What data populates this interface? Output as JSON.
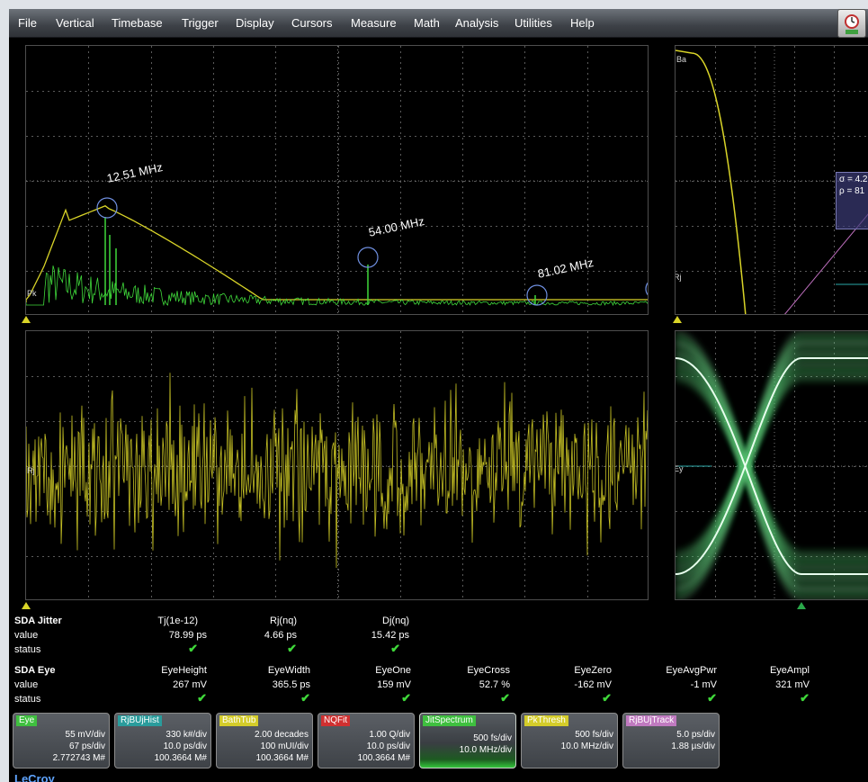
{
  "menu": {
    "items": [
      "File",
      "Vertical",
      "Timebase",
      "Trigger",
      "Display",
      "Cursors",
      "Measure",
      "Math",
      "Analysis",
      "Utilities",
      "Help"
    ]
  },
  "colors": {
    "spectrum_trace": "#3fd83a",
    "yellow_trace": "#d9d428",
    "eye": "#2aa84a",
    "check": "#3fd83a",
    "link_blue": "#5fa4ff"
  },
  "grid_labels": {
    "spectrum": "Pk",
    "bathtub": "Ba",
    "bathtub_lower": "Rj",
    "track": "Rj",
    "eye": "Ey"
  },
  "bathtub_fit": {
    "sigma": "σ = 4.2",
    "rho": "ρ = 81"
  },
  "peaks": [
    {
      "label": "12.51 MHz"
    },
    {
      "label": "54.00 MHz"
    },
    {
      "label": "81.02 MHz"
    }
  ],
  "sda_jitter": {
    "title": "SDA Jitter",
    "row_value": "value",
    "row_status": "status",
    "headers": [
      "Tj(1e-12)",
      "Rj(nq)",
      "Dj(nq)"
    ],
    "values": [
      "78.99 ps",
      "4.66 ps",
      "15.42 ps"
    ],
    "status": [
      "✔",
      "✔",
      "✔"
    ]
  },
  "sda_eye": {
    "title": "SDA Eye",
    "row_value": "value",
    "row_status": "status",
    "headers": [
      "EyeHeight",
      "EyeWidth",
      "EyeOne",
      "EyeCross",
      "EyeZero",
      "EyeAvgPwr",
      "EyeAmpl"
    ],
    "values": [
      "267 mV",
      "365.5 ps",
      "159 mV",
      "52.7 %",
      "-162 mV",
      "-1 mV",
      "321 mV"
    ],
    "status": [
      "✔",
      "✔",
      "✔",
      "✔",
      "✔",
      "✔",
      "✔"
    ]
  },
  "descriptors": [
    {
      "tag": "Eye",
      "tag_bg": "#3fbf3f",
      "tag_fg": "#ffffff",
      "lines": [
        "55 mV/div",
        "67 ps/div",
        "2.772743 M#"
      ]
    },
    {
      "tag": "RjBUjHist",
      "tag_bg": "#2a9c9c",
      "tag_fg": "#ffffff",
      "lines": [
        "330 k#/div",
        "10.0 ps/div",
        "100.3664 M#"
      ]
    },
    {
      "tag": "BathTub",
      "tag_bg": "#d4cc2a",
      "tag_fg": "#ffffff",
      "lines": [
        "2.00 decades",
        "100 mUI/div",
        "100.3664 M#"
      ]
    },
    {
      "tag": "NQFit",
      "tag_bg": "#d03030",
      "tag_fg": "#ffffff",
      "lines": [
        "1.00 Q/div",
        "10.0 ps/div",
        "100.3664 M#"
      ]
    },
    {
      "tag": "JitSpectrum",
      "tag_bg": "#3fbf3f",
      "tag_fg": "#ffffff",
      "lines": [
        "500 fs/div",
        "10.0 MHz/div"
      ]
    },
    {
      "tag": "PkThresh",
      "tag_bg": "#d4cc2a",
      "tag_fg": "#ffffff",
      "lines": [
        "500 fs/div",
        "10.0 MHz/div"
      ]
    },
    {
      "tag": "RjBUjTrack",
      "tag_bg": "#c07ac0",
      "tag_fg": "#ffffff",
      "lines": [
        "5.0 ps/div",
        "1.88 µs/div"
      ]
    }
  ],
  "logo": "LeCroy"
}
